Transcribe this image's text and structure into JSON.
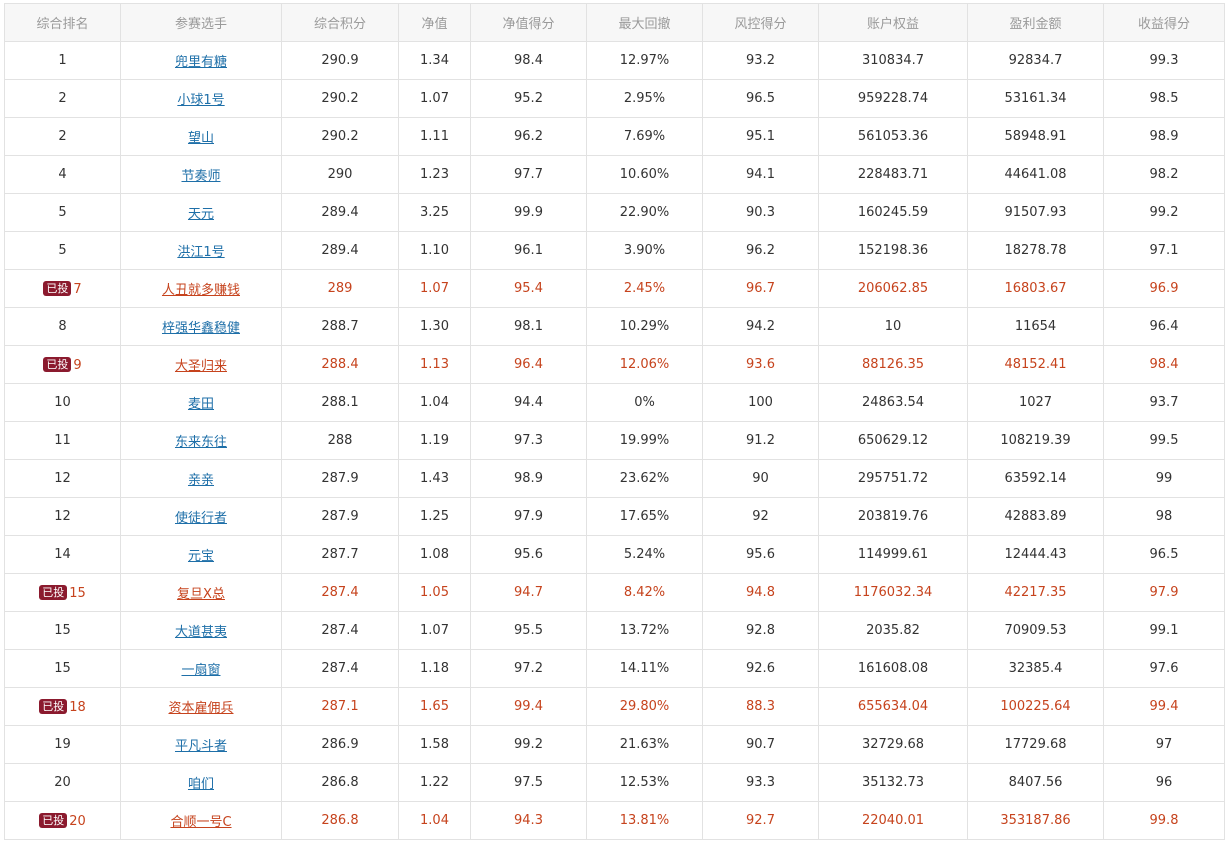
{
  "columns": [
    "综合排名",
    "参赛选手",
    "综合积分",
    "净值",
    "净值得分",
    "最大回撤",
    "风控得分",
    "账户权益",
    "盈利金额",
    "收益得分"
  ],
  "badge_label": "已投",
  "colors": {
    "highlight_text": "#c6431d",
    "badge_bg": "#8b1a2e",
    "link": "#1e6fa8",
    "header_text": "#9a9a9a",
    "border": "#e2e2e2"
  },
  "rows": [
    {
      "rank": "1",
      "player": "兜里有糖",
      "score": "290.9",
      "nav": "1.34",
      "nav_score": "98.4",
      "max_dd": "12.97%",
      "risk_score": "93.2",
      "equity": "310834.7",
      "profit": "92834.7",
      "return_score": "99.3",
      "invested": false
    },
    {
      "rank": "2",
      "player": "小球1号",
      "score": "290.2",
      "nav": "1.07",
      "nav_score": "95.2",
      "max_dd": "2.95%",
      "risk_score": "96.5",
      "equity": "959228.74",
      "profit": "53161.34",
      "return_score": "98.5",
      "invested": false
    },
    {
      "rank": "2",
      "player": "望山",
      "score": "290.2",
      "nav": "1.11",
      "nav_score": "96.2",
      "max_dd": "7.69%",
      "risk_score": "95.1",
      "equity": "561053.36",
      "profit": "58948.91",
      "return_score": "98.9",
      "invested": false
    },
    {
      "rank": "4",
      "player": "节奏师",
      "score": "290",
      "nav": "1.23",
      "nav_score": "97.7",
      "max_dd": "10.60%",
      "risk_score": "94.1",
      "equity": "228483.71",
      "profit": "44641.08",
      "return_score": "98.2",
      "invested": false
    },
    {
      "rank": "5",
      "player": "天元",
      "score": "289.4",
      "nav": "3.25",
      "nav_score": "99.9",
      "max_dd": "22.90%",
      "risk_score": "90.3",
      "equity": "160245.59",
      "profit": "91507.93",
      "return_score": "99.2",
      "invested": false
    },
    {
      "rank": "5",
      "player": "洪江1号",
      "score": "289.4",
      "nav": "1.10",
      "nav_score": "96.1",
      "max_dd": "3.90%",
      "risk_score": "96.2",
      "equity": "152198.36",
      "profit": "18278.78",
      "return_score": "97.1",
      "invested": false
    },
    {
      "rank": "7",
      "player": "人丑就多赚钱",
      "score": "289",
      "nav": "1.07",
      "nav_score": "95.4",
      "max_dd": "2.45%",
      "risk_score": "96.7",
      "equity": "206062.85",
      "profit": "16803.67",
      "return_score": "96.9",
      "invested": true
    },
    {
      "rank": "8",
      "player": "梓强华鑫稳健",
      "score": "288.7",
      "nav": "1.30",
      "nav_score": "98.1",
      "max_dd": "10.29%",
      "risk_score": "94.2",
      "equity": "10",
      "profit": "11654",
      "return_score": "96.4",
      "invested": false
    },
    {
      "rank": "9",
      "player": "大圣归来",
      "score": "288.4",
      "nav": "1.13",
      "nav_score": "96.4",
      "max_dd": "12.06%",
      "risk_score": "93.6",
      "equity": "88126.35",
      "profit": "48152.41",
      "return_score": "98.4",
      "invested": true
    },
    {
      "rank": "10",
      "player": "麦田",
      "score": "288.1",
      "nav": "1.04",
      "nav_score": "94.4",
      "max_dd": "0%",
      "risk_score": "100",
      "equity": "24863.54",
      "profit": "1027",
      "return_score": "93.7",
      "invested": false
    },
    {
      "rank": "11",
      "player": "东来东往",
      "score": "288",
      "nav": "1.19",
      "nav_score": "97.3",
      "max_dd": "19.99%",
      "risk_score": "91.2",
      "equity": "650629.12",
      "profit": "108219.39",
      "return_score": "99.5",
      "invested": false
    },
    {
      "rank": "12",
      "player": "亲亲",
      "score": "287.9",
      "nav": "1.43",
      "nav_score": "98.9",
      "max_dd": "23.62%",
      "risk_score": "90",
      "equity": "295751.72",
      "profit": "63592.14",
      "return_score": "99",
      "invested": false
    },
    {
      "rank": "12",
      "player": "使徒行者",
      "score": "287.9",
      "nav": "1.25",
      "nav_score": "97.9",
      "max_dd": "17.65%",
      "risk_score": "92",
      "equity": "203819.76",
      "profit": "42883.89",
      "return_score": "98",
      "invested": false
    },
    {
      "rank": "14",
      "player": "元宝",
      "score": "287.7",
      "nav": "1.08",
      "nav_score": "95.6",
      "max_dd": "5.24%",
      "risk_score": "95.6",
      "equity": "114999.61",
      "profit": "12444.43",
      "return_score": "96.5",
      "invested": false
    },
    {
      "rank": "15",
      "player": "复旦X总",
      "score": "287.4",
      "nav": "1.05",
      "nav_score": "94.7",
      "max_dd": "8.42%",
      "risk_score": "94.8",
      "equity": "1176032.34",
      "profit": "42217.35",
      "return_score": "97.9",
      "invested": true
    },
    {
      "rank": "15",
      "player": "大道甚夷",
      "score": "287.4",
      "nav": "1.07",
      "nav_score": "95.5",
      "max_dd": "13.72%",
      "risk_score": "92.8",
      "equity": "2035.82",
      "profit": "70909.53",
      "return_score": "99.1",
      "invested": false
    },
    {
      "rank": "15",
      "player": "一扇窗",
      "score": "287.4",
      "nav": "1.18",
      "nav_score": "97.2",
      "max_dd": "14.11%",
      "risk_score": "92.6",
      "equity": "161608.08",
      "profit": "32385.4",
      "return_score": "97.6",
      "invested": false
    },
    {
      "rank": "18",
      "player": "资本雇佣兵",
      "score": "287.1",
      "nav": "1.65",
      "nav_score": "99.4",
      "max_dd": "29.80%",
      "risk_score": "88.3",
      "equity": "655634.04",
      "profit": "100225.64",
      "return_score": "99.4",
      "invested": true
    },
    {
      "rank": "19",
      "player": "平凡斗者",
      "score": "286.9",
      "nav": "1.58",
      "nav_score": "99.2",
      "max_dd": "21.63%",
      "risk_score": "90.7",
      "equity": "32729.68",
      "profit": "17729.68",
      "return_score": "97",
      "invested": false
    },
    {
      "rank": "20",
      "player": "咱们",
      "score": "286.8",
      "nav": "1.22",
      "nav_score": "97.5",
      "max_dd": "12.53%",
      "risk_score": "93.3",
      "equity": "35132.73",
      "profit": "8407.56",
      "return_score": "96",
      "invested": false
    },
    {
      "rank": "20",
      "player": "合顺一号C",
      "score": "286.8",
      "nav": "1.04",
      "nav_score": "94.3",
      "max_dd": "13.81%",
      "risk_score": "92.7",
      "equity": "22040.01",
      "profit": "353187.86",
      "return_score": "99.8",
      "invested": true
    }
  ]
}
